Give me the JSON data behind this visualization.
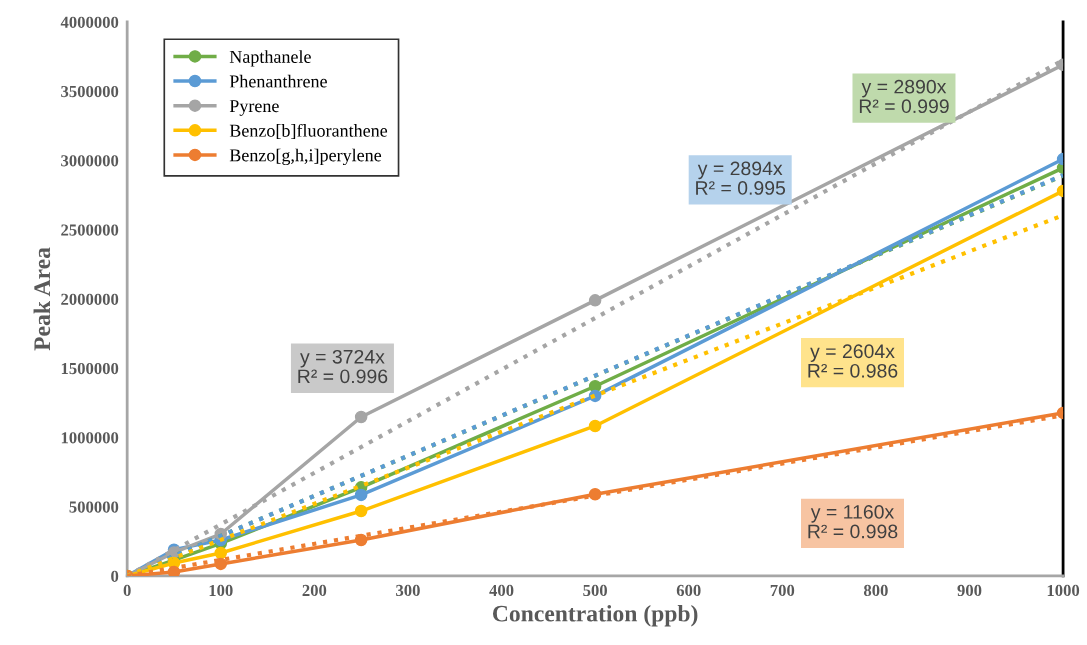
{
  "chart_data": {
    "type": "line",
    "xlabel": "Concentration (ppb)",
    "ylabel": "Peak Area",
    "x": [
      0,
      50,
      100,
      250,
      500,
      1000
    ],
    "series": [
      {
        "name": "Napthanele",
        "color": "#70ad47",
        "values": [
          0,
          115000,
          235000,
          640000,
          1370000,
          2946000
        ]
      },
      {
        "name": "Phenanthrene",
        "color": "#5b9bd5",
        "values": [
          0,
          190000,
          260000,
          585000,
          1300000,
          3010000
        ]
      },
      {
        "name": "Pyrene",
        "color": "#a5a5a5",
        "values": [
          0,
          170000,
          303000,
          1148000,
          1990000,
          3690000
        ]
      },
      {
        "name": "Benzo[b]fluoranthene",
        "color": "#ffc000",
        "values": [
          0,
          94000,
          166000,
          469000,
          1083000,
          2780000
        ]
      },
      {
        "name": "Benzo[g,h,i]perylene",
        "color": "#ed7d31",
        "values": [
          0,
          29000,
          87000,
          260000,
          590000,
          1177000
        ]
      },
      {
        "color": "#70ad47",
        "values": [
          0,
          144500,
          289000,
          722500,
          1445000,
          2890000
        ],
        "line_style": "dotted",
        "marker": "none"
      },
      {
        "color": "#5b9bd5",
        "values": [
          0,
          144700,
          289400,
          723500,
          1447000,
          2894000
        ],
        "line_style": "dotted",
        "marker": "none"
      },
      {
        "color": "#a5a5a5",
        "values": [
          0,
          186200,
          372400,
          931000,
          1862000,
          3724000
        ],
        "line_style": "dotted",
        "marker": "none"
      },
      {
        "color": "#ffc000",
        "values": [
          0,
          130200,
          260400,
          651000,
          1302000,
          2604000
        ],
        "line_style": "dotted",
        "marker": "none"
      },
      {
        "color": "#ed7d31",
        "values": [
          0,
          58000,
          116000,
          290000,
          580000,
          1160000
        ],
        "line_style": "dotted",
        "marker": "none"
      }
    ],
    "xlim": [
      0,
      1000
    ],
    "xticks": [
      0,
      100,
      200,
      300,
      400,
      500,
      600,
      700,
      800,
      900,
      1000
    ],
    "ylim": [
      0,
      4000000
    ],
    "yticks": [
      0,
      500000,
      1000000,
      1500000,
      2000000,
      2500000,
      3000000,
      3500000,
      4000000
    ],
    "marker": "circle",
    "line_style": "solid",
    "legend": "top left",
    "grid": false,
    "annotations": [
      "y = 2890x\nR² = 0.999",
      "y = 2894x\nR² = 0.995",
      "y = 3724x\nR² = 0.996",
      "y = 2604x\nR² = 0.986",
      "y = 1160x\nR² = 0.998"
    ]
  }
}
